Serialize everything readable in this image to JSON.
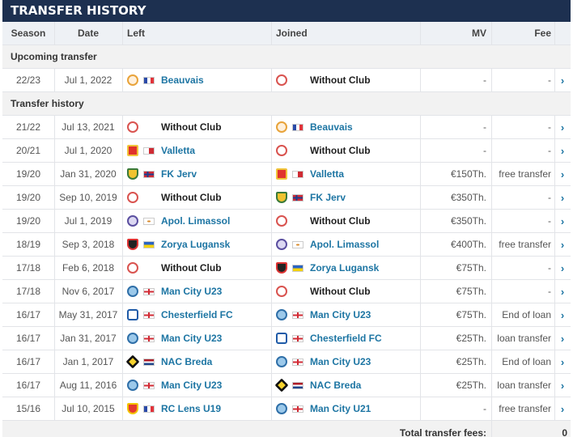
{
  "title": "TRANSFER HISTORY",
  "columns": {
    "season": "Season",
    "date": "Date",
    "left": "Left",
    "joined": "Joined",
    "mv": "MV",
    "fee": "Fee"
  },
  "sections": {
    "upcoming": "Upcoming transfer",
    "history": "Transfer history"
  },
  "upcoming": [
    {
      "season": "22/23",
      "date": "Jul 1, 2022",
      "left": {
        "name": "Beauvais",
        "crest": "beauvais-crest-icon",
        "flag": "france-flag-icon"
      },
      "joined": {
        "name": "Without Club",
        "crest": "without-club-icon",
        "flag": ""
      },
      "mv": "-",
      "fee": "-"
    }
  ],
  "history": [
    {
      "season": "21/22",
      "date": "Jul 13, 2021",
      "left": {
        "name": "Without Club",
        "crest": "without-club-icon",
        "flag": ""
      },
      "joined": {
        "name": "Beauvais",
        "crest": "beauvais-crest-icon",
        "flag": "france-flag-icon"
      },
      "mv": "-",
      "fee": "-"
    },
    {
      "season": "20/21",
      "date": "Jul 1, 2020",
      "left": {
        "name": "Valletta",
        "crest": "valletta-crest-icon",
        "flag": "malta-flag-icon"
      },
      "joined": {
        "name": "Without Club",
        "crest": "without-club-icon",
        "flag": ""
      },
      "mv": "-",
      "fee": "-"
    },
    {
      "season": "19/20",
      "date": "Jan 31, 2020",
      "left": {
        "name": "FK Jerv",
        "crest": "jerv-crest-icon",
        "flag": "norway-flag-icon"
      },
      "joined": {
        "name": "Valletta",
        "crest": "valletta-crest-icon",
        "flag": "malta-flag-icon"
      },
      "mv": "€150Th.",
      "fee": "free transfer"
    },
    {
      "season": "19/20",
      "date": "Sep 10, 2019",
      "left": {
        "name": "Without Club",
        "crest": "without-club-icon",
        "flag": ""
      },
      "joined": {
        "name": "FK Jerv",
        "crest": "jerv-crest-icon",
        "flag": "norway-flag-icon"
      },
      "mv": "€350Th.",
      "fee": "-"
    },
    {
      "season": "19/20",
      "date": "Jul 1, 2019",
      "left": {
        "name": "Apol. Limassol",
        "crest": "apollon-crest-icon",
        "flag": "cyprus-flag-icon"
      },
      "joined": {
        "name": "Without Club",
        "crest": "without-club-icon",
        "flag": ""
      },
      "mv": "€350Th.",
      "fee": "-"
    },
    {
      "season": "18/19",
      "date": "Sep 3, 2018",
      "left": {
        "name": "Zorya Lugansk",
        "crest": "zorya-crest-icon",
        "flag": "ukraine-flag-icon"
      },
      "joined": {
        "name": "Apol. Limassol",
        "crest": "apollon-crest-icon",
        "flag": "cyprus-flag-icon"
      },
      "mv": "€400Th.",
      "fee": "free transfer"
    },
    {
      "season": "17/18",
      "date": "Feb 6, 2018",
      "left": {
        "name": "Without Club",
        "crest": "without-club-icon",
        "flag": ""
      },
      "joined": {
        "name": "Zorya Lugansk",
        "crest": "zorya-crest-icon",
        "flag": "ukraine-flag-icon"
      },
      "mv": "€75Th.",
      "fee": "-"
    },
    {
      "season": "17/18",
      "date": "Nov 6, 2017",
      "left": {
        "name": "Man City U23",
        "crest": "man-city-crest-icon",
        "flag": "england-flag-icon"
      },
      "joined": {
        "name": "Without Club",
        "crest": "without-club-icon",
        "flag": ""
      },
      "mv": "€75Th.",
      "fee": "-"
    },
    {
      "season": "16/17",
      "date": "May 31, 2017",
      "left": {
        "name": "Chesterfield FC",
        "crest": "chesterfield-crest-icon",
        "flag": "england-flag-icon"
      },
      "joined": {
        "name": "Man City U23",
        "crest": "man-city-crest-icon",
        "flag": "england-flag-icon"
      },
      "mv": "€75Th.",
      "fee": "End of loan"
    },
    {
      "season": "16/17",
      "date": "Jan 31, 2017",
      "left": {
        "name": "Man City U23",
        "crest": "man-city-crest-icon",
        "flag": "england-flag-icon"
      },
      "joined": {
        "name": "Chesterfield FC",
        "crest": "chesterfield-crest-icon",
        "flag": "england-flag-icon"
      },
      "mv": "€25Th.",
      "fee": "loan transfer"
    },
    {
      "season": "16/17",
      "date": "Jan 1, 2017",
      "left": {
        "name": "NAC Breda",
        "crest": "nac-breda-crest-icon",
        "flag": "netherlands-flag-icon"
      },
      "joined": {
        "name": "Man City U23",
        "crest": "man-city-crest-icon",
        "flag": "england-flag-icon"
      },
      "mv": "€25Th.",
      "fee": "End of loan"
    },
    {
      "season": "16/17",
      "date": "Aug 11, 2016",
      "left": {
        "name": "Man City U23",
        "crest": "man-city-crest-icon",
        "flag": "england-flag-icon"
      },
      "joined": {
        "name": "NAC Breda",
        "crest": "nac-breda-crest-icon",
        "flag": "netherlands-flag-icon"
      },
      "mv": "€25Th.",
      "fee": "loan transfer"
    },
    {
      "season": "15/16",
      "date": "Jul 10, 2015",
      "left": {
        "name": "RC Lens U19",
        "crest": "rc-lens-crest-icon",
        "flag": "france-flag-icon"
      },
      "joined": {
        "name": "Man City U21",
        "crest": "man-city-crest-icon",
        "flag": "england-flag-icon"
      },
      "mv": "-",
      "fee": "free transfer"
    }
  ],
  "footer": {
    "label": "Total transfer fees:",
    "value": "0"
  },
  "colors": {
    "header_bg": "#1d3050",
    "link": "#1d75a3",
    "row_border": "#e2e4e8"
  }
}
